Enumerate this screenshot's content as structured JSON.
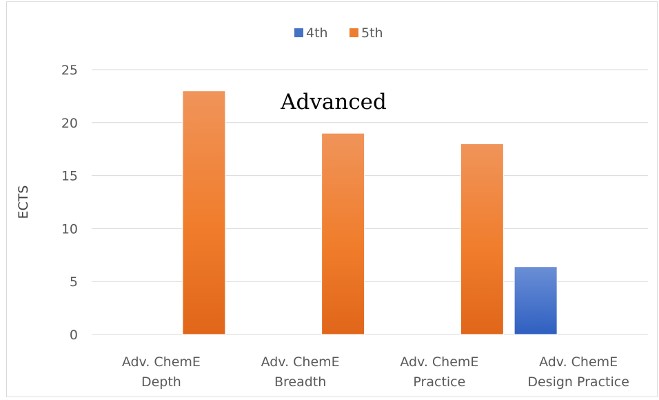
{
  "chart_data": {
    "type": "bar",
    "categories": [
      [
        "Adv. ChemE",
        "Depth"
      ],
      [
        "Adv. ChemE",
        "Breadth"
      ],
      [
        "Adv. ChemE",
        "Practice"
      ],
      [
        "Adv. ChemE",
        "Design Practice"
      ]
    ],
    "series": [
      {
        "name": "4th",
        "color": "#4472c4",
        "values": [
          0,
          0,
          0,
          6.4
        ]
      },
      {
        "name": "5th",
        "color": "#ed7d31",
        "values": [
          23,
          19,
          18,
          0
        ]
      }
    ],
    "title": "",
    "annotation": "Advanced",
    "xlabel": "",
    "ylabel": "ECTS",
    "ylim": [
      0,
      25
    ],
    "yticks": [
      0,
      5,
      10,
      15,
      20,
      25
    ],
    "grid": true,
    "legend": "top-center"
  }
}
